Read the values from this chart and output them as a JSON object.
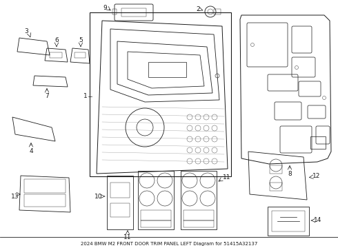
{
  "title": "2024 BMW M2 FRONT DOOR TRIM PANEL LEFT Diagram for 51415A32137",
  "bg_color": "#ffffff",
  "line_color": "#1a1a1a",
  "figsize": [
    4.9,
    3.6
  ],
  "dpi": 100
}
